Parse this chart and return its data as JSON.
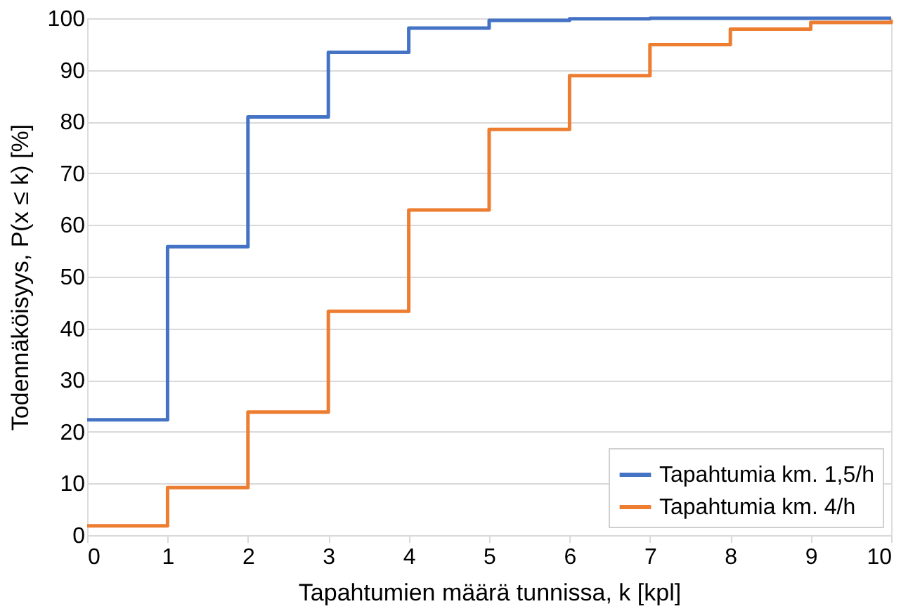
{
  "chart_data": {
    "type": "step",
    "xlabel": "Tapahtumien määrä tunnissa, k [kpl]",
    "ylabel": "Todennäköisyys, P(x ≤ k) [%]",
    "x": [
      0,
      1,
      2,
      3,
      4,
      5,
      6,
      7,
      8,
      9,
      10
    ],
    "series": [
      {
        "name": "Tapahtumia km. 1,5/h",
        "color": "#4472c4",
        "values": [
          22.3,
          55.8,
          80.9,
          93.4,
          98.1,
          99.6,
          99.9,
          100,
          100,
          100,
          100
        ]
      },
      {
        "name": "Tapahtumia km. 4/h",
        "color": "#ed7d31",
        "values": [
          1.8,
          9.2,
          23.8,
          43.3,
          62.9,
          78.5,
          88.9,
          94.9,
          97.9,
          99.2,
          99.7
        ]
      }
    ],
    "xlim": [
      0,
      10
    ],
    "xticks": [
      0,
      1,
      2,
      3,
      4,
      5,
      6,
      7,
      8,
      9,
      10
    ],
    "ylim": [
      0,
      100
    ],
    "yticks": [
      0,
      10,
      20,
      30,
      40,
      50,
      60,
      70,
      80,
      90,
      100
    ],
    "grid": "y",
    "legend": "bottom right",
    "line_style": "solid",
    "marker": "none"
  }
}
